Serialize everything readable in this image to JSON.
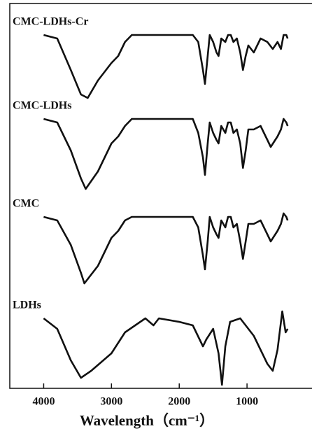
{
  "chart_data": {
    "type": "line",
    "x_label": "Wavelength（cm⁻¹）",
    "xlim": [
      4500,
      0
    ],
    "xticks": [
      4000,
      3000,
      2000,
      1000,
      0
    ],
    "ylim": [
      0,
      110
    ],
    "series": [
      {
        "name": "CMC-LDHs-Cr",
        "color": "#111111",
        "x": [
          4000,
          3800,
          3600,
          3450,
          3350,
          3200,
          3000,
          2900,
          2800,
          2700,
          2000,
          1800,
          1720,
          1650,
          1620,
          1580,
          1550,
          1500,
          1450,
          1420,
          1380,
          1320,
          1280,
          1240,
          1200,
          1150,
          1100,
          1060,
          1020,
          980,
          900,
          800,
          700,
          620,
          550,
          500,
          460,
          420,
          400
        ],
        "values": [
          101,
          100,
          91,
          84,
          83,
          88,
          93,
          95,
          99,
          101,
          101,
          101,
          99,
          91,
          87,
          95,
          101,
          99,
          96,
          95,
          100,
          99,
          101,
          101,
          99,
          100,
          96,
          91,
          95,
          98,
          96,
          100,
          99,
          97,
          99,
          97,
          101,
          101,
          100
        ]
      },
      {
        "name": "CMC-LDHs",
        "color": "#111111",
        "x": [
          4000,
          3800,
          3600,
          3450,
          3380,
          3200,
          3000,
          2900,
          2800,
          2700,
          2000,
          1800,
          1720,
          1650,
          1620,
          1580,
          1550,
          1500,
          1450,
          1420,
          1380,
          1320,
          1280,
          1240,
          1200,
          1150,
          1100,
          1060,
          1020,
          980,
          900,
          800,
          700,
          650,
          550,
          500,
          460,
          420,
          400
        ],
        "values": [
          77,
          76,
          68,
          60,
          57,
          62,
          70,
          72,
          75,
          77,
          77,
          77,
          73,
          66,
          61,
          70,
          76,
          73,
          71,
          70,
          75,
          73,
          76,
          76,
          73,
          74,
          70,
          63,
          68,
          74,
          74,
          75,
          71,
          69,
          72,
          74,
          77,
          76,
          75
        ]
      },
      {
        "name": "CMC",
        "color": "#111111",
        "x": [
          4000,
          3800,
          3600,
          3450,
          3400,
          3200,
          3000,
          2900,
          2800,
          2700,
          2000,
          1800,
          1720,
          1650,
          1620,
          1580,
          1550,
          1500,
          1450,
          1420,
          1380,
          1320,
          1280,
          1240,
          1200,
          1150,
          1100,
          1060,
          1020,
          980,
          900,
          800,
          700,
          650,
          550,
          500,
          460,
          420,
          400
        ],
        "values": [
          49,
          48,
          41,
          33,
          30,
          35,
          43,
          45,
          48,
          49,
          49,
          49,
          46,
          38,
          34,
          42,
          49,
          46,
          44,
          43,
          48,
          46,
          49,
          49,
          46,
          47,
          42,
          37,
          42,
          47,
          47,
          48,
          44,
          42,
          45,
          47,
          50,
          49,
          48
        ]
      },
      {
        "name": "LDHs",
        "color": "#111111",
        "x": [
          4000,
          3800,
          3600,
          3450,
          3300,
          3000,
          2800,
          2500,
          2380,
          2300,
          2000,
          1800,
          1650,
          1600,
          1500,
          1420,
          1370,
          1320,
          1250,
          1100,
          900,
          800,
          700,
          620,
          550,
          480,
          430,
          400
        ],
        "values": [
          20,
          17,
          8,
          3,
          5,
          10,
          16,
          20,
          18,
          20,
          19,
          18,
          12,
          14,
          17,
          10,
          1,
          12,
          19,
          20,
          15,
          11,
          7,
          5,
          11,
          22,
          16,
          17
        ]
      }
    ]
  }
}
